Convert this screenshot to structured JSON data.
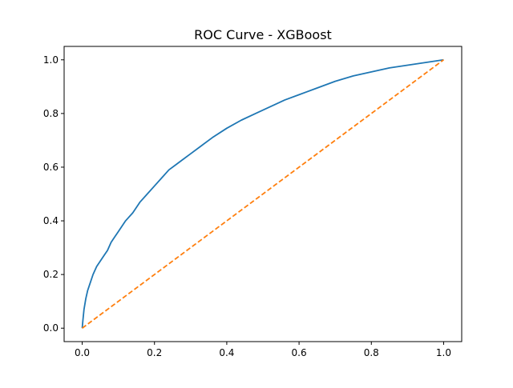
{
  "chart_data": {
    "type": "line",
    "title": "ROC Curve - XGBoost",
    "xlabel": "",
    "ylabel": "",
    "xlim": [
      -0.05,
      1.05
    ],
    "ylim": [
      -0.05,
      1.05
    ],
    "x_ticks": [
      0.0,
      0.2,
      0.4,
      0.6,
      0.8,
      1.0
    ],
    "x_tick_labels": [
      "0.0",
      "0.2",
      "0.4",
      "0.6",
      "0.8",
      "1.0"
    ],
    "y_ticks": [
      0.0,
      0.2,
      0.4,
      0.6,
      0.8,
      1.0
    ],
    "y_tick_labels": [
      "0.0",
      "0.2",
      "0.4",
      "0.6",
      "0.8",
      "1.0"
    ],
    "grid": false,
    "legend": false,
    "series": [
      {
        "color": "#1f77b4",
        "style": "solid",
        "x": [
          0.0,
          0.002,
          0.005,
          0.01,
          0.015,
          0.02,
          0.03,
          0.04,
          0.05,
          0.06,
          0.07,
          0.08,
          0.09,
          0.1,
          0.12,
          0.14,
          0.16,
          0.18,
          0.2,
          0.22,
          0.24,
          0.26,
          0.28,
          0.3,
          0.33,
          0.36,
          0.4,
          0.44,
          0.48,
          0.52,
          0.56,
          0.6,
          0.65,
          0.7,
          0.75,
          0.8,
          0.85,
          0.9,
          0.95,
          1.0
        ],
        "y": [
          0.0,
          0.03,
          0.07,
          0.11,
          0.14,
          0.16,
          0.2,
          0.23,
          0.25,
          0.27,
          0.29,
          0.32,
          0.34,
          0.36,
          0.4,
          0.43,
          0.47,
          0.5,
          0.53,
          0.56,
          0.59,
          0.61,
          0.63,
          0.65,
          0.68,
          0.71,
          0.745,
          0.775,
          0.8,
          0.825,
          0.85,
          0.87,
          0.895,
          0.92,
          0.94,
          0.955,
          0.97,
          0.98,
          0.99,
          1.0
        ]
      },
      {
        "color": "#ff7f0e",
        "style": "dashed",
        "x": [
          0.0,
          1.0
        ],
        "y": [
          0.0,
          1.0
        ]
      }
    ]
  }
}
